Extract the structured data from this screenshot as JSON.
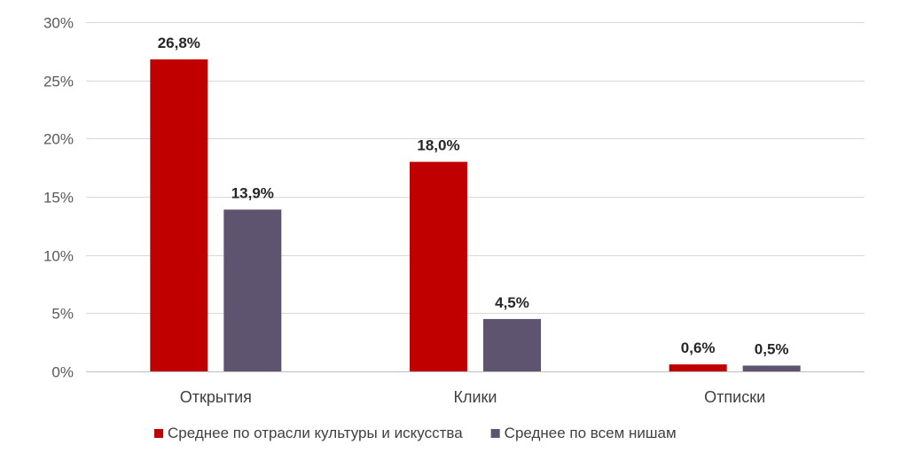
{
  "chart_data": {
    "type": "bar",
    "title": "",
    "xlabel": "",
    "ylabel": "",
    "categories": [
      "Открытия",
      "Клики",
      "Отписки"
    ],
    "series": [
      {
        "name": "Среднее по отрасли культуры и искусства",
        "color": "#c00000",
        "values": [
          26.8,
          18.0,
          0.6
        ],
        "labels": [
          "26,8%",
          "18,0%",
          "0,6%"
        ]
      },
      {
        "name": "Среднее по всем нишам",
        "color": "#5f5470",
        "values": [
          13.9,
          4.5,
          0.5
        ],
        "labels": [
          "13,9%",
          "4,5%",
          "0,5%"
        ]
      }
    ],
    "ylim": [
      0,
      30
    ],
    "yticks": [
      0,
      5,
      10,
      15,
      20,
      25,
      30
    ],
    "ytick_labels": [
      "0%",
      "5%",
      "10%",
      "15%",
      "20%",
      "25%",
      "30%"
    ],
    "grid": true,
    "legend_position": "bottom"
  }
}
